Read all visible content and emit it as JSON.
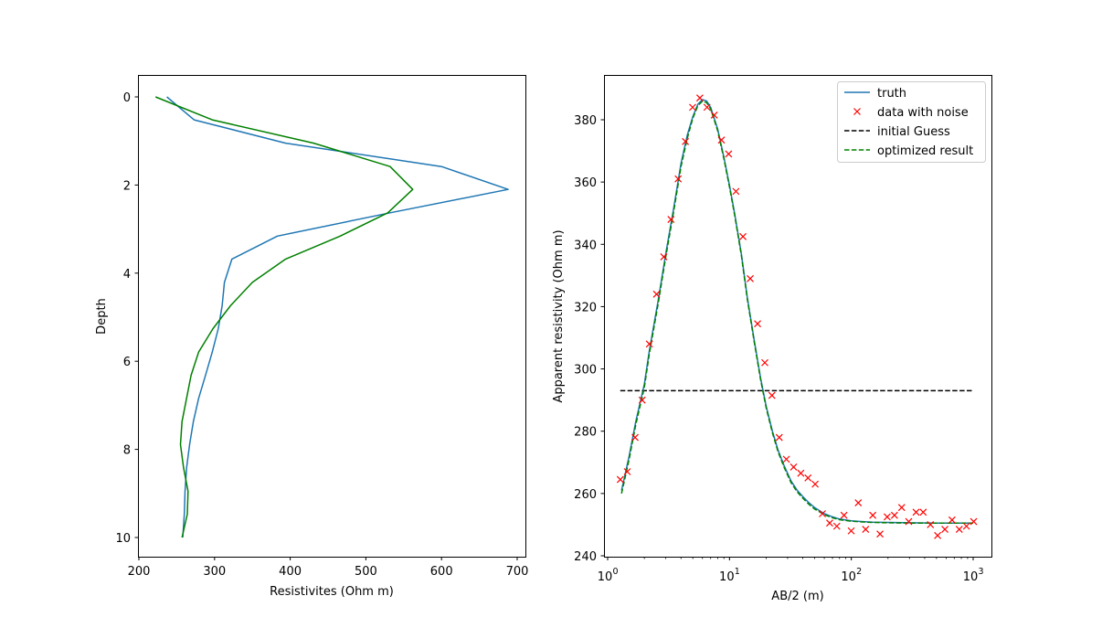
{
  "chart_data": [
    {
      "type": "line",
      "xlabel": "Resistivites (Ohm m)",
      "ylabel": "Depth",
      "xlim": [
        200,
        700
      ],
      "ylim": [
        10,
        0
      ],
      "inverted_y": true,
      "xticks": [
        200,
        300,
        400,
        500,
        600,
        700
      ],
      "yticks": [
        0,
        2,
        4,
        6,
        8,
        10
      ],
      "grid": false,
      "series": [
        {
          "color": "#1f77b4",
          "points": [
            [
              237,
              -0.0
            ],
            [
              273,
              0.52
            ],
            [
              394,
              1.05
            ],
            [
              600,
              1.58
            ],
            [
              688,
              2.1
            ],
            [
              532,
              2.63
            ],
            [
              383,
              3.16
            ],
            [
              323,
              3.68
            ],
            [
              313,
              4.21
            ],
            [
              310,
              4.74
            ],
            [
              305,
              5.26
            ],
            [
              297,
              5.79
            ],
            [
              288,
              6.32
            ],
            [
              279,
              6.84
            ],
            [
              272,
              7.37
            ],
            [
              267,
              7.89
            ],
            [
              263,
              8.42
            ],
            [
              261,
              8.95
            ],
            [
              260,
              9.47
            ],
            [
              258,
              10.0
            ]
          ]
        },
        {
          "color": "#008000",
          "points": [
            [
              222,
              -0.0
            ],
            [
              297,
              0.52
            ],
            [
              431,
              1.05
            ],
            [
              532,
              1.58
            ],
            [
              562,
              2.1
            ],
            [
              529,
              2.63
            ],
            [
              466,
              3.16
            ],
            [
              394,
              3.68
            ],
            [
              350,
              4.21
            ],
            [
              321,
              4.74
            ],
            [
              298,
              5.26
            ],
            [
              279,
              5.79
            ],
            [
              269,
              6.32
            ],
            [
              263,
              6.84
            ],
            [
              257,
              7.37
            ],
            [
              255,
              7.89
            ],
            [
              259,
              8.42
            ],
            [
              265,
              8.95
            ],
            [
              264,
              9.47
            ],
            [
              257,
              10.0
            ]
          ]
        }
      ]
    },
    {
      "type": "line",
      "xlabel": "AB/2 (m)",
      "ylabel": "Apparent resistivity (Ohm m)",
      "xscale": "log",
      "xlim": [
        0.93,
        1450
      ],
      "ylim": [
        239.4,
        393.8
      ],
      "xticks_labels": [
        "10",
        "10",
        "10",
        "10"
      ],
      "xticks_exponents": [
        "0",
        "1",
        "2",
        "3"
      ],
      "yticks": [
        240,
        260,
        280,
        300,
        320,
        340,
        360,
        380
      ],
      "grid": false,
      "legend": "top-right",
      "series": [
        {
          "name": "truth",
          "color": "#1f77b4",
          "style": "solid",
          "marker": "none",
          "x": [
            1.3,
            1.5,
            1.7,
            2.0,
            2.2,
            2.6,
            3.0,
            3.5,
            4.0,
            4.5,
            5.0,
            5.5,
            6.0,
            6.5,
            7.0,
            8.0,
            9.0,
            10.0,
            11.0,
            12.5,
            14.0,
            16.0,
            18.0,
            20.0,
            22.5,
            25.0,
            28.0,
            32.0,
            36.0,
            40.0,
            45.0,
            50.0,
            60.0,
            70.0,
            80.0,
            100.0,
            120.0,
            150.0,
            200.0,
            300.0,
            500.0,
            1000.0
          ],
          "y": [
            261,
            272,
            283,
            295,
            306,
            322,
            337,
            352,
            366,
            375,
            381,
            385,
            386.5,
            386,
            384,
            377,
            368,
            359,
            350,
            337,
            323,
            309,
            297,
            288,
            280,
            274,
            269,
            264,
            261,
            259,
            257,
            255.5,
            253.5,
            252.5,
            251.8,
            251.2,
            251,
            250.8,
            250.7,
            250.6,
            250.5,
            250.5
          ]
        },
        {
          "name": "data with noise",
          "color": "#ff0000",
          "style": "none",
          "marker": "x",
          "x": [
            1.27,
            1.45,
            1.68,
            1.92,
            2.2,
            2.52,
            2.89,
            3.31,
            3.79,
            4.35,
            4.98,
            5.71,
            6.54,
            7.5,
            8.59,
            9.84,
            11.3,
            12.9,
            14.8,
            17.0,
            19.5,
            22.3,
            25.6,
            29.3,
            33.6,
            38.5,
            44.1,
            50.5,
            57.9,
            66.4,
            76.0,
            87.1,
            99.8,
            114.0,
            131.0,
            150.0,
            172.0,
            197.0,
            226.0,
            259.0,
            296.0,
            340.0,
            389.0,
            446.0,
            511.0,
            586.0,
            671.0,
            769.0,
            881.0,
            1010.0
          ],
          "y": [
            264.5,
            267,
            278,
            290,
            308,
            324,
            336,
            348,
            361,
            373,
            384,
            387,
            384,
            381.5,
            373.5,
            369,
            357,
            342.5,
            329,
            314.5,
            302,
            291.5,
            278,
            271,
            268.5,
            266.5,
            265,
            263,
            253.5,
            250.5,
            249.5,
            253,
            248,
            257,
            248.5,
            253,
            247,
            252.5,
            253,
            255.5,
            251,
            254,
            254,
            250,
            246.5,
            248.5,
            251.5,
            248.5,
            249.5,
            251
          ]
        },
        {
          "name": "initial Guess",
          "color": "#000000",
          "style": "dashed",
          "marker": "none",
          "x": [
            1.27,
            1000.0
          ],
          "y": [
            293,
            293
          ]
        },
        {
          "name": "optimized result",
          "color": "#008000",
          "style": "dashed",
          "marker": "none",
          "x": [
            1.3,
            1.5,
            1.7,
            2.0,
            2.2,
            2.6,
            3.0,
            3.5,
            4.0,
            4.5,
            5.0,
            5.5,
            6.0,
            6.5,
            7.0,
            8.0,
            9.0,
            10.0,
            11.0,
            12.5,
            14.0,
            16.0,
            18.0,
            20.0,
            22.5,
            25.0,
            28.0,
            32.0,
            36.0,
            40.0,
            45.0,
            50.0,
            60.0,
            70.0,
            80.0,
            100.0,
            120.0,
            150.0,
            200.0,
            300.0,
            500.0,
            1000.0
          ],
          "y": [
            260,
            271,
            282,
            294,
            305,
            321,
            336,
            351,
            365,
            374,
            380.5,
            384.5,
            386,
            385.5,
            383.5,
            376.5,
            367.5,
            358.5,
            349.5,
            336.5,
            322.5,
            308.5,
            296.5,
            287.5,
            279.5,
            273.5,
            268.5,
            263.5,
            260.5,
            258.5,
            256.5,
            255,
            253.2,
            252.2,
            251.6,
            251.1,
            250.9,
            250.7,
            250.6,
            250.5,
            250.5,
            250.5
          ]
        }
      ]
    }
  ]
}
